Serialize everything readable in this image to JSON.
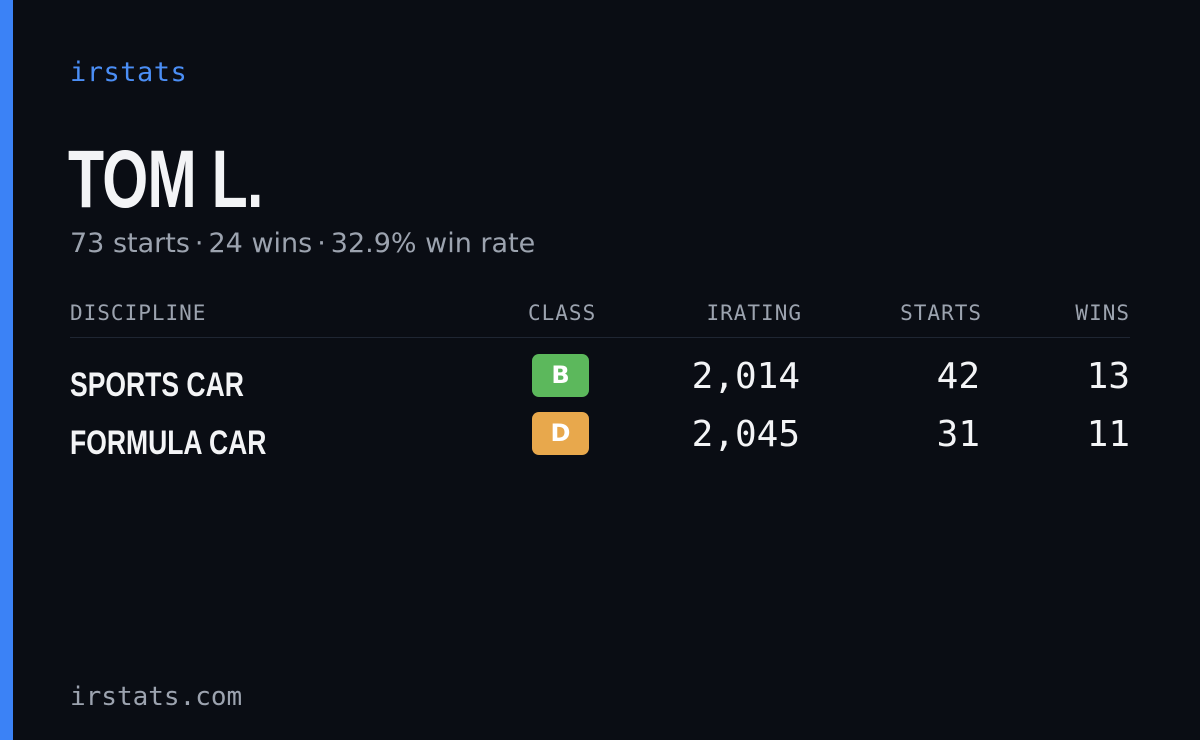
{
  "brand": "irstats",
  "driver": {
    "name": "TOM L."
  },
  "summary": {
    "starts": "73 starts",
    "wins": "24 wins",
    "win_rate": "32.9% win rate",
    "separator": "·"
  },
  "table": {
    "headers": {
      "discipline": "DISCIPLINE",
      "class": "CLASS",
      "irating": "IRATING",
      "starts": "STARTS",
      "wins": "WINS"
    },
    "rows": [
      {
        "discipline": "SPORTS CAR",
        "class": "B",
        "class_color": "#5cb85c",
        "irating": "2,014",
        "starts": "42",
        "wins": "13"
      },
      {
        "discipline": "FORMULA CAR",
        "class": "D",
        "class_color": "#e8a84c",
        "irating": "2,045",
        "starts": "31",
        "wins": "11"
      }
    ]
  },
  "footer": "irstats.com",
  "colors": {
    "background": "#0a0d14",
    "accent": "#3b82f6",
    "text_primary": "#f3f4f6",
    "text_muted": "#9ca3af"
  }
}
